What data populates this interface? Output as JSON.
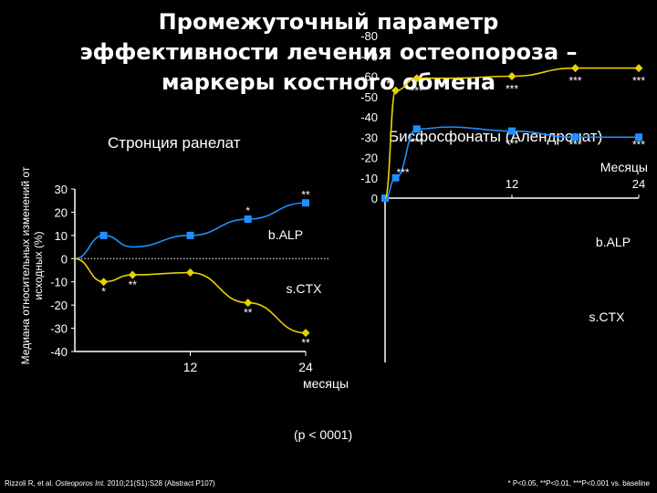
{
  "title": {
    "line1": "Промежуточный параметр",
    "line2": "эффективности лечения остеопороза –",
    "line3": "маркеры костного обмена"
  },
  "y_axis_label": {
    "line1": "Медиана относительных изменений от",
    "line2": "исходных  (%)"
  },
  "p_note": "(p < 0001)",
  "footer": {
    "citation_prefix": "Rizzoli R, et al. ",
    "citation_journal": "Osteoporos Int.",
    "citation_suffix": " 2010;21(S1):S28 (Abstract P107)",
    "significance": "* P<0.05, **P<0.01, ***P<0.001 vs. baseline"
  },
  "colors": {
    "balp": "#1e90ff",
    "sctx": "#e8d200",
    "axis": "#ffffff",
    "background": "#000000"
  },
  "chart_data": [
    {
      "type": "line",
      "title": "Стронция ранелат",
      "xlabel": "месяцы",
      "x_ticks": [
        "12",
        "24"
      ],
      "xlim": [
        0,
        24
      ],
      "ylim": [
        -40,
        30
      ],
      "y_ticks": [
        "30",
        "20",
        "10",
        "0",
        "-10",
        "-20",
        "-30",
        "-40"
      ],
      "baseline": 0,
      "series": [
        {
          "name": "b.ALP",
          "color": "#1e90ff",
          "points": [
            [
              0,
              0
            ],
            [
              3,
              10
            ],
            [
              6,
              5
            ],
            [
              12,
              10
            ],
            [
              18,
              17
            ],
            [
              24,
              24
            ]
          ],
          "markers": [
            1,
            3,
            4,
            5
          ],
          "labels": [
            "",
            "",
            "",
            "",
            "*",
            "**"
          ]
        },
        {
          "name": "s.CTX",
          "color": "#e8d200",
          "points": [
            [
              0,
              0
            ],
            [
              3,
              -10
            ],
            [
              6,
              -7
            ],
            [
              12,
              -6
            ],
            [
              18,
              -19
            ],
            [
              24,
              -32
            ]
          ],
          "markers": [
            1,
            2,
            3,
            4,
            5
          ],
          "labels": [
            "",
            "*",
            "**",
            "",
            "**",
            "**"
          ]
        }
      ]
    },
    {
      "type": "line",
      "title": "Бисфосфонаты (Алендронат)",
      "xlabel": "Месяцы",
      "x_ticks": [
        "12",
        "24"
      ],
      "xlim": [
        0,
        24
      ],
      "ylim": [
        -80,
        0
      ],
      "y_ticks": [
        "0",
        "-10",
        "-20",
        "-30",
        "-40",
        "-50",
        "-60",
        "-70",
        "-80"
      ],
      "series": [
        {
          "name": "b.ALP",
          "color": "#1e90ff",
          "points": [
            [
              0,
              0
            ],
            [
              1,
              -10
            ],
            [
              3,
              -34
            ],
            [
              6,
              -35
            ],
            [
              12,
              -33
            ],
            [
              18,
              -30
            ],
            [
              24,
              -30
            ]
          ],
          "markers": [
            1,
            2,
            4,
            5,
            6
          ],
          "labels": [
            "",
            "***",
            "***",
            "",
            "***",
            "***",
            "***"
          ]
        },
        {
          "name": "s.CTX",
          "color": "#e8d200",
          "points": [
            [
              0,
              0
            ],
            [
              1,
              -53
            ],
            [
              3,
              -59
            ],
            [
              6,
              -59
            ],
            [
              12,
              -60
            ],
            [
              18,
              -64
            ],
            [
              24,
              -64
            ]
          ],
          "markers": [
            1,
            2,
            4,
            5,
            6
          ],
          "labels": [
            "",
            "***",
            "***",
            "",
            "***",
            "***",
            "***"
          ]
        }
      ]
    }
  ]
}
